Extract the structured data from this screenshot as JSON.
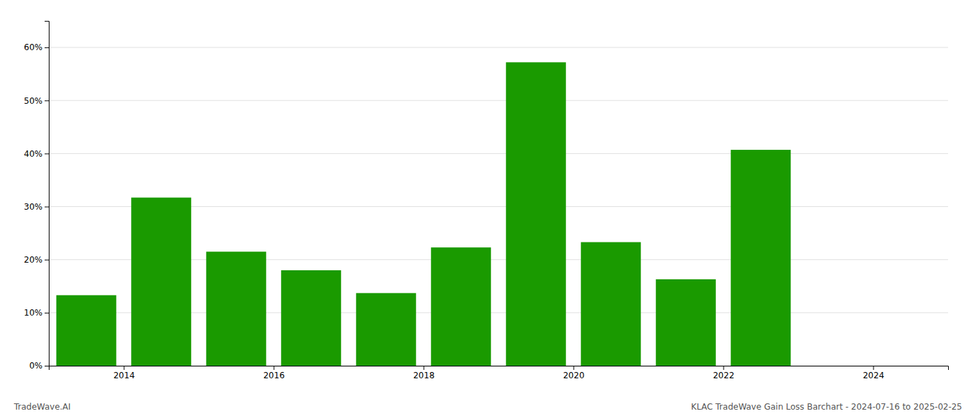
{
  "chart_data": {
    "type": "bar",
    "x": [
      2013.5,
      2014.5,
      2015.5,
      2016.5,
      2017.5,
      2018.5,
      2019.5,
      2020.5,
      2021.5,
      2022.5
    ],
    "values": [
      0.133,
      0.317,
      0.215,
      0.18,
      0.137,
      0.223,
      0.572,
      0.233,
      0.163,
      0.407
    ],
    "color": "#1a9a00",
    "xlim": [
      2013.0,
      2025.0
    ],
    "xticks": [
      2014,
      2016,
      2018,
      2020,
      2022,
      2024
    ],
    "ylim": [
      0,
      0.65
    ],
    "yticks": [
      {
        "value": 0.0,
        "label": "0%"
      },
      {
        "value": 0.1,
        "label": "10%"
      },
      {
        "value": 0.2,
        "label": "20%"
      },
      {
        "value": 0.3,
        "label": "30%"
      },
      {
        "value": 0.4,
        "label": "40%"
      },
      {
        "value": 0.5,
        "label": "50%"
      },
      {
        "value": 0.6,
        "label": "60%"
      }
    ],
    "grid": true,
    "annotations": [
      "TradeWave.AI",
      "KLAC TradeWave Gain Loss Barchart - 2024-07-16 to 2025-02-25"
    ]
  }
}
